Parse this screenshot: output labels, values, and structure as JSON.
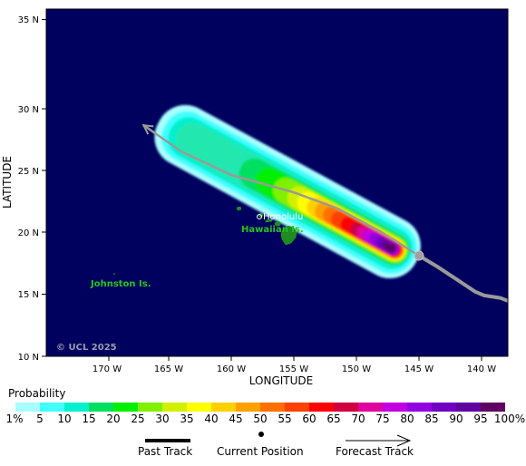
{
  "map": {
    "credit": "© UCL 2025",
    "ocean_color": "#00005f",
    "land_color": "#1e8c1e",
    "track_color": "#9a9a9a",
    "x_axis_title": "LONGITUDE",
    "y_axis_title": "LATITUDE",
    "lon_ticks": [
      "170 W",
      "165 W",
      "160 W",
      "155 W",
      "150 W",
      "145 W",
      "140 W"
    ],
    "lat_ticks": [
      "35 N",
      "30 N",
      "25 N",
      "20 N",
      "15 N",
      "10 N"
    ],
    "places": {
      "honolulu": "Honolulu",
      "hawaiian": "Hawaiian Is.",
      "johnston": "Johnston Is."
    },
    "current_position": {
      "lon": -145.0,
      "lat": 18.1
    },
    "past_track": [
      [
        -145.0,
        18.1
      ],
      [
        -143.5,
        17.2
      ],
      [
        -142.0,
        16.2
      ],
      [
        -140.5,
        15.2
      ],
      [
        -139.8,
        14.9
      ],
      [
        -138.5,
        14.7
      ],
      [
        -137.5,
        14.3
      ]
    ],
    "forecast_track": [
      [
        -145.0,
        18.1
      ],
      [
        -148.0,
        20.0
      ],
      [
        -151.5,
        21.9
      ],
      [
        -155.0,
        23.2
      ],
      [
        -160.0,
        24.6
      ],
      [
        -164.0,
        26.5
      ],
      [
        -167.0,
        28.6
      ]
    ]
  },
  "legend": {
    "title": "Probability",
    "colors": [
      "#a8ffff",
      "#40ffff",
      "#00f0d0",
      "#00e060",
      "#00f000",
      "#80f000",
      "#d0f000",
      "#ffff00",
      "#ffd000",
      "#ffa000",
      "#ff7000",
      "#ff4000",
      "#ff0000",
      "#d00040",
      "#e000a0",
      "#c000e0",
      "#9000e0",
      "#7000c0",
      "#6000a0",
      "#600060"
    ],
    "labels": [
      "1%",
      "5",
      "10",
      "15",
      "20",
      "25",
      "30",
      "35",
      "40",
      "45",
      "50",
      "55",
      "60",
      "65",
      "70",
      "75",
      "80",
      "85",
      "90",
      "95",
      "100%"
    ]
  },
  "key": {
    "past_track": "Past Track",
    "current_position": "Current Position",
    "forecast_track": "Forecast Track"
  }
}
